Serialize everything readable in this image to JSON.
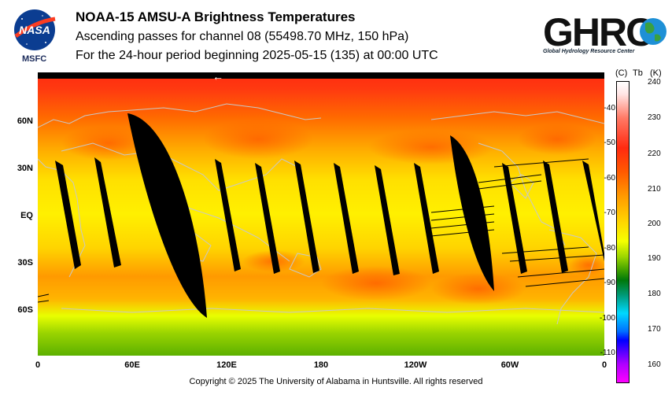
{
  "header": {
    "title": "NOAA-15 AMSU-A Brightness Temperatures",
    "subtitle1": "Ascending passes for channel 08 (55498.70 MHz, 150 hPa)",
    "subtitle2": "For the 24-hour period beginning 2025-05-15 (135) at 00:00 UTC"
  },
  "logos": {
    "nasa_text": "NASA",
    "msfc_text": "MSFC",
    "ghrc_text": "GHRC",
    "ghrc_subtitle": "Global Hydrology Resource Center"
  },
  "map": {
    "lat_labels": [
      "60N",
      "30N",
      "EQ",
      "30S",
      "60S"
    ],
    "lon_labels": [
      "0",
      "60E",
      "120E",
      "180",
      "120W",
      "60W",
      "0"
    ],
    "direction_arrow": "←"
  },
  "colorbar": {
    "header_c": "(C)",
    "header_tb": "Tb",
    "header_k": "(K)",
    "celsius_labels": [
      "-40",
      "-50",
      "-60",
      "-70",
      "-80",
      "-90",
      "-100",
      "-110"
    ],
    "kelvin_labels": [
      "240",
      "230",
      "220",
      "210",
      "200",
      "190",
      "180",
      "170",
      "160"
    ]
  },
  "footer": {
    "copyright": "Copyright © 2025 The University of Alabama in Huntsville.  All rights reserved"
  },
  "colors": {
    "polar_red": "#ff2a10",
    "mid_orange": "#ff8c00",
    "tropical_yellow": "#ffe800",
    "south_green": "#6cc000",
    "coastline": "#c8c8c8",
    "gap": "#000000"
  }
}
